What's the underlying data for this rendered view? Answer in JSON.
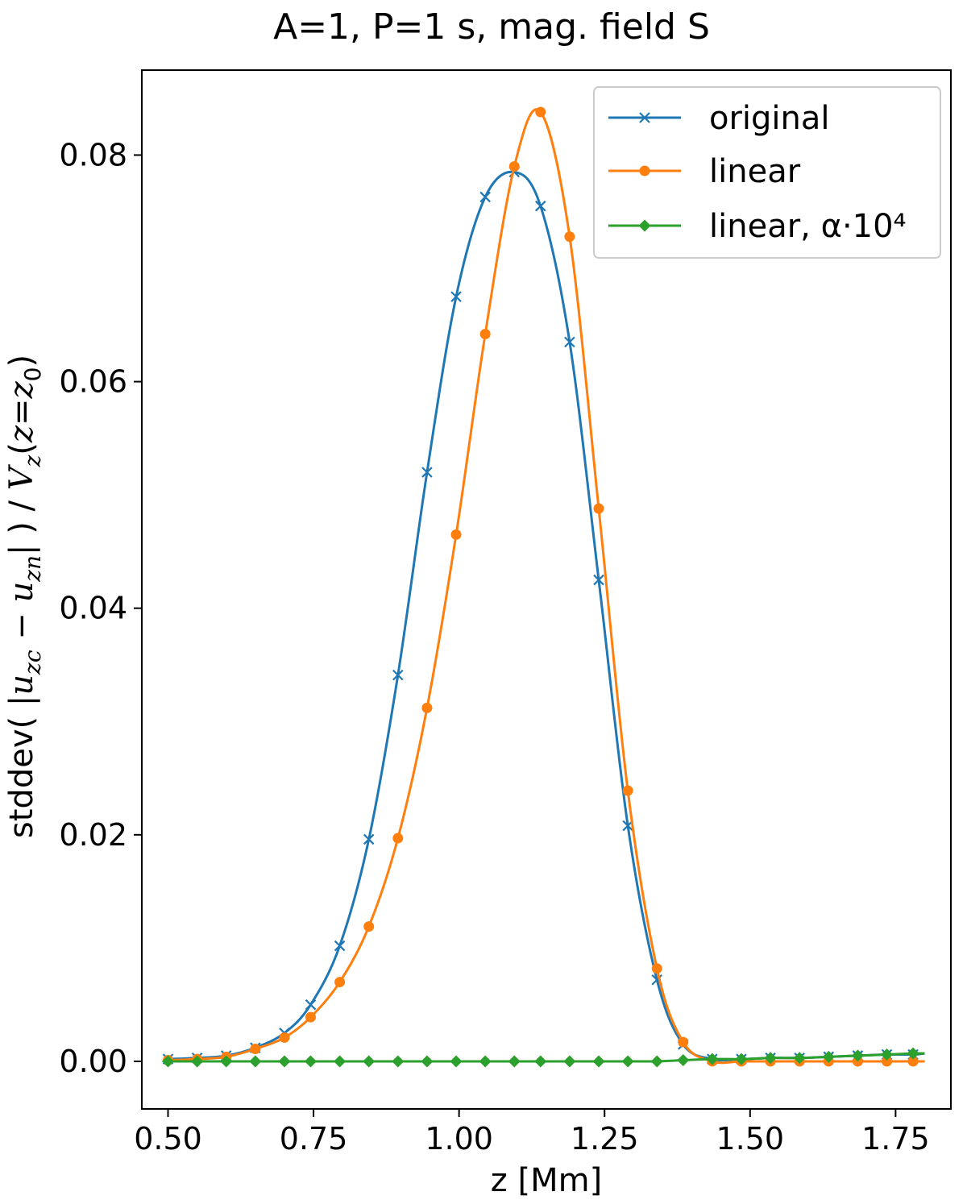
{
  "chart_data": {
    "type": "line",
    "title": "A=1, P=1 s, mag. field S",
    "xlabel": "z [Mm]",
    "ylabel": "stddev( |u_zc − u_zn| ) / V_z(z=z_0)",
    "xlim": [
      0.455,
      1.845
    ],
    "ylim": [
      -0.0042,
      0.0875
    ],
    "xticks": [
      0.5,
      0.75,
      1.0,
      1.25,
      1.5,
      1.75
    ],
    "xtick_labels": [
      "0.50",
      "0.75",
      "1.00",
      "1.25",
      "1.50",
      "1.75"
    ],
    "yticks": [
      0.0,
      0.02,
      0.04,
      0.06,
      0.08
    ],
    "ytick_labels": [
      "0.00",
      "0.02",
      "0.04",
      "0.06",
      "0.08"
    ],
    "grid": false,
    "legend_position": "top-right",
    "series": [
      {
        "name": "original",
        "color": "#1f77b4",
        "marker": "x",
        "x": [
          0.5,
          0.55,
          0.6,
          0.65,
          0.7,
          0.745,
          0.795,
          0.845,
          0.895,
          0.945,
          0.995,
          1.045,
          1.095,
          1.14,
          1.19,
          1.24,
          1.29,
          1.34,
          1.385,
          1.435,
          1.485,
          1.535,
          1.585,
          1.635,
          1.685,
          1.735,
          1.78,
          1.8
        ],
        "y": [
          0.0002,
          0.0003,
          0.0005,
          0.0012,
          0.0025,
          0.005,
          0.0102,
          0.0196,
          0.0341,
          0.052,
          0.0675,
          0.0763,
          0.0785,
          0.0755,
          0.0635,
          0.0425,
          0.0208,
          0.0072,
          0.0015,
          0.0002,
          0.0002,
          0.0003,
          0.0003,
          0.0004,
          0.0005,
          0.0006,
          0.0006,
          0.0007
        ]
      },
      {
        "name": "linear",
        "color": "#ff7f0e",
        "marker": "o",
        "x": [
          0.5,
          0.55,
          0.6,
          0.65,
          0.7,
          0.745,
          0.795,
          0.845,
          0.895,
          0.945,
          0.995,
          1.045,
          1.095,
          1.14,
          1.19,
          1.24,
          1.29,
          1.34,
          1.385,
          1.435,
          1.485,
          1.535,
          1.585,
          1.635,
          1.685,
          1.735,
          1.78,
          1.8
        ],
        "y": [
          0.0001,
          0.0002,
          0.0004,
          0.0011,
          0.0021,
          0.0039,
          0.007,
          0.0119,
          0.0197,
          0.0312,
          0.0465,
          0.0642,
          0.079,
          0.0838,
          0.0728,
          0.0488,
          0.0239,
          0.0082,
          0.0017,
          0.0,
          0.0,
          0.0,
          0.0,
          0.0,
          0.0,
          0.0,
          0.0,
          0.0
        ]
      },
      {
        "name": "linear, α·10⁴",
        "color": "#2ca02c",
        "marker": "D",
        "x": [
          0.5,
          0.55,
          0.6,
          0.65,
          0.7,
          0.745,
          0.795,
          0.845,
          0.895,
          0.945,
          0.995,
          1.045,
          1.095,
          1.14,
          1.19,
          1.24,
          1.29,
          1.34,
          1.385,
          1.435,
          1.485,
          1.535,
          1.585,
          1.635,
          1.685,
          1.735,
          1.78,
          1.8
        ],
        "y": [
          0.0,
          0.0,
          0.0,
          0.0,
          0.0,
          0.0,
          0.0,
          0.0,
          0.0,
          0.0,
          0.0,
          0.0,
          0.0,
          0.0,
          0.0,
          0.0,
          0.0,
          0.0,
          0.0001,
          0.0002,
          0.0002,
          0.0003,
          0.0003,
          0.0004,
          0.0005,
          0.0006,
          0.0007,
          0.0007
        ]
      }
    ]
  }
}
